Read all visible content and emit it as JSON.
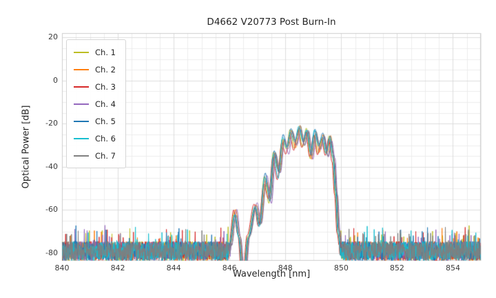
{
  "chart_data": {
    "type": "line",
    "title": "D4662 V20773 Post Burn-In",
    "xlabel": "Wavelength [nm]",
    "ylabel": "Optical Power [dB]",
    "xlim": [
      840,
      855
    ],
    "ylim": [
      -83.5,
      22
    ],
    "xticks": [
      840,
      842,
      844,
      846,
      848,
      850,
      852,
      854
    ],
    "yticks": [
      20,
      0,
      -20,
      -40,
      -60,
      -80
    ],
    "minor_x_step": 0.5,
    "minor_y_step": 5,
    "grid": true,
    "legend_position": "upper-left",
    "sample_step": 0.01,
    "noise_floor": {
      "mean": -79,
      "spread": 4.5,
      "regions": [
        [
          840,
          846.35
        ],
        [
          849.87,
          855
        ]
      ]
    },
    "envelope_keypoints": [
      [
        840.0,
        -95
      ],
      [
        845.85,
        -95
      ],
      [
        846.02,
        -76
      ],
      [
        846.2,
        -61
      ],
      [
        846.34,
        -72
      ],
      [
        846.5,
        -94
      ],
      [
        846.68,
        -72
      ],
      [
        846.93,
        -57
      ],
      [
        847.08,
        -67
      ],
      [
        847.28,
        -45
      ],
      [
        847.44,
        -55
      ],
      [
        847.6,
        -33.5
      ],
      [
        847.76,
        -43
      ],
      [
        847.92,
        -26.5
      ],
      [
        848.06,
        -32
      ],
      [
        848.2,
        -23.5
      ],
      [
        848.35,
        -30
      ],
      [
        848.5,
        -21.8
      ],
      [
        848.64,
        -29
      ],
      [
        848.78,
        -23
      ],
      [
        848.92,
        -35
      ],
      [
        849.06,
        -24.5
      ],
      [
        849.2,
        -32
      ],
      [
        849.34,
        -25.5
      ],
      [
        849.48,
        -34
      ],
      [
        849.6,
        -26.5
      ],
      [
        849.72,
        -36
      ],
      [
        849.81,
        -52
      ],
      [
        849.9,
        -70
      ],
      [
        850.02,
        -82
      ],
      [
        850.3,
        -90
      ],
      [
        855,
        -95
      ]
    ],
    "series": [
      {
        "name": "Ch. 1",
        "color": "#bcbd22",
        "x_shift": -0.03,
        "level_offset": -0.5,
        "seed": 101
      },
      {
        "name": "Ch. 2",
        "color": "#ff7f0e",
        "x_shift": 0.02,
        "level_offset": 0.0,
        "seed": 202
      },
      {
        "name": "Ch. 3",
        "color": "#d62728",
        "x_shift": -0.05,
        "level_offset": -1.0,
        "seed": 303
      },
      {
        "name": "Ch. 4",
        "color": "#9467bd",
        "x_shift": 0.06,
        "level_offset": -1.5,
        "seed": 404
      },
      {
        "name": "Ch. 5",
        "color": "#1f77b4",
        "x_shift": 0.0,
        "level_offset": 1.2,
        "seed": 505
      },
      {
        "name": "Ch. 6",
        "color": "#17becf",
        "x_shift": -0.02,
        "level_offset": 0.5,
        "seed": 606
      },
      {
        "name": "Ch. 7",
        "color": "#7f7f7f",
        "x_shift": 0.04,
        "level_offset": -0.5,
        "seed": 707
      }
    ],
    "colors": {
      "grid_major": "#dcdcdc",
      "grid_minor": "#ececec",
      "plot_border": "#cccccc",
      "background": "#ffffff"
    }
  }
}
